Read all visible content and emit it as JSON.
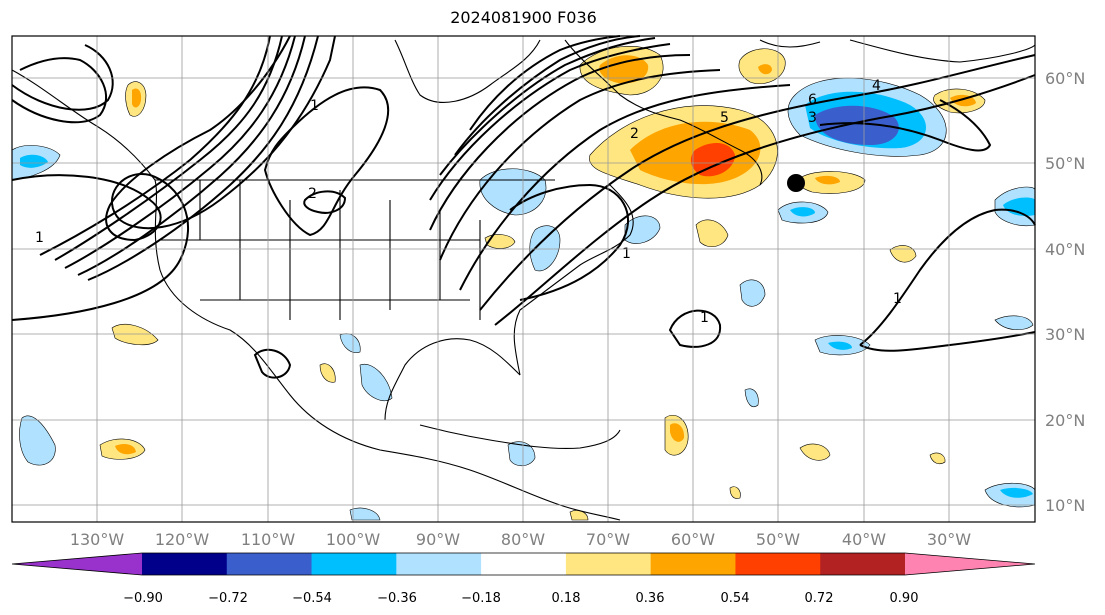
{
  "title": "2024081900 F036",
  "lon_labels": [
    "130°W",
    "120°W",
    "110°W",
    "100°W",
    "90°W",
    "80°W",
    "70°W",
    "60°W",
    "50°W",
    "40°W",
    "30°W"
  ],
  "lat_labels": [
    "60°N",
    "50°N",
    "40°N",
    "30°N",
    "20°N",
    "10°N"
  ],
  "colorbar": {
    "ticks": [
      "−0.90",
      "−0.72",
      "−0.54",
      "−0.36",
      "−0.18",
      "0.18",
      "0.36",
      "0.54",
      "0.72",
      "0.90"
    ],
    "colors": [
      "#9932cc",
      "#00008b",
      "#3a5fcd",
      "#00bfff",
      "#b0e2ff",
      "#ffffff",
      "#ffe680",
      "#ffa500",
      "#ff4000",
      "#b22222",
      "#ff83b0"
    ]
  },
  "contour_labels": [
    "1",
    "1",
    "2",
    "6",
    "5",
    "4",
    "3",
    "2",
    "1",
    "1",
    "1"
  ],
  "marker": "black-dot"
}
